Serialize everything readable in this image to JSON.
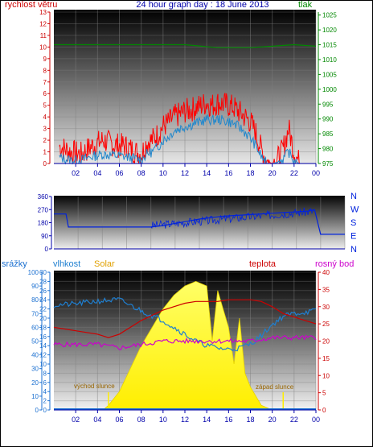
{
  "title": "24 hour graph day : 18 June 2013",
  "colors": {
    "wind": "#ff0000",
    "wind_avg": "#2288cc",
    "pressure": "#008800",
    "direction": "#0022dd",
    "humidity": "#1f7fd0",
    "solar": "#ffff33",
    "temperature": "#cc0000",
    "dewpoint": "#cc00cc",
    "rain": "#1a6fd0",
    "time_axis": "#0000aa"
  },
  "chart_data": [
    {
      "type": "line",
      "labels": {
        "left": "rychlost větru",
        "right": "tlak"
      },
      "x_ticks": [
        "02",
        "04",
        "06",
        "08",
        "10",
        "12",
        "14",
        "16",
        "18",
        "20",
        "22",
        "00"
      ],
      "xlim": [
        0,
        24
      ],
      "y_left": {
        "ticks": [
          "0",
          "1",
          "2",
          "3",
          "4",
          "5",
          "6",
          "7",
          "8",
          "9",
          "10",
          "11",
          "12",
          "13"
        ],
        "ylim": [
          0,
          13
        ]
      },
      "y_right": {
        "ticks": [
          "975",
          "980",
          "985",
          "990",
          "995",
          "1000",
          "1005",
          "1010",
          "1015",
          "1020",
          "1025"
        ],
        "ylim": [
          975,
          1026
        ]
      },
      "series": [
        {
          "key": "wind_gust",
          "axis": "left",
          "x": [
            0.5,
            1.5,
            2.5,
            3.5,
            4.5,
            5.5,
            6.5,
            7.5,
            8,
            8.5,
            9,
            9.5,
            10,
            10.5,
            11,
            11.5,
            12,
            12.5,
            13,
            13.5,
            14,
            14.5,
            15,
            15.5,
            16,
            16.5,
            17,
            17.5,
            18,
            18.5,
            19,
            19.5,
            20,
            20.5,
            21,
            21.5,
            22,
            22.5,
            23,
            24
          ],
          "y": [
            1.5,
            1.0,
            0.8,
            1.5,
            2.0,
            1.6,
            1.5,
            1.0,
            0.8,
            1.8,
            2.0,
            2.5,
            3.2,
            3.5,
            4.0,
            4.2,
            4.5,
            4.6,
            4.8,
            5.0,
            5.2,
            5.0,
            5.2,
            5.1,
            5.0,
            4.8,
            4.4,
            4.0,
            3.6,
            2.6,
            1.2,
            0.2,
            0,
            0.4,
            1.2,
            3.0,
            1.0,
            0,
            0,
            0
          ]
        },
        {
          "key": "wind_avg",
          "axis": "left",
          "x": [
            0.5,
            1.5,
            2.5,
            3.5,
            4.5,
            5.5,
            6.5,
            7.5,
            8,
            8.5,
            9,
            9.5,
            10,
            10.5,
            11,
            11.5,
            12,
            12.5,
            13,
            13.5,
            14,
            14.5,
            15,
            15.5,
            16,
            16.5,
            17,
            17.5,
            18,
            18.5,
            19,
            19.5,
            20,
            20.5,
            21,
            21.5,
            22,
            22.5,
            23,
            24
          ],
          "y": [
            0.5,
            0.3,
            0.3,
            0.6,
            0.8,
            0.7,
            0.6,
            0.4,
            0.3,
            0.8,
            1.0,
            1.4,
            2.0,
            2.3,
            2.8,
            3.0,
            3.2,
            3.3,
            3.5,
            3.6,
            3.8,
            3.7,
            3.8,
            3.7,
            3.6,
            3.4,
            3.1,
            2.7,
            2.2,
            1.5,
            0.6,
            0,
            0,
            0.1,
            0.4,
            1.0,
            0.2,
            0,
            0,
            0
          ]
        },
        {
          "key": "pressure",
          "axis": "right",
          "x": [
            0,
            3,
            6,
            9,
            12,
            15,
            18,
            20,
            22,
            24
          ],
          "y": [
            1015,
            1015,
            1015,
            1015,
            1015,
            1014,
            1014,
            1014.5,
            1015,
            1014.5
          ]
        }
      ]
    },
    {
      "type": "scatter",
      "labels": {
        "right": [
          "N",
          "W",
          "S",
          "E",
          "N"
        ]
      },
      "x_ticks": [
        "02",
        "04",
        "06",
        "08",
        "10",
        "12",
        "14",
        "16",
        "18",
        "20",
        "22",
        "00"
      ],
      "xlim": [
        0,
        24
      ],
      "y_left": {
        "ticks": [
          "0",
          "90",
          "180",
          "270",
          "360"
        ],
        "ylim": [
          0,
          360
        ]
      },
      "series": [
        {
          "key": "wind_direction",
          "x": [
            0,
            1,
            1.2,
            8,
            9,
            10,
            11,
            12,
            13,
            14,
            15,
            16,
            17,
            18,
            19,
            20,
            21,
            21.5,
            22,
            23,
            24
          ],
          "y": [
            240,
            240,
            150,
            150,
            160,
            175,
            190,
            205,
            215,
            225,
            230,
            235,
            240,
            245,
            250,
            255,
            260,
            270,
            100,
            100,
            100
          ]
        }
      ]
    },
    {
      "type": "line",
      "labels": {
        "rain": "srážky",
        "humidity": "vlhkost",
        "solar": "Solar",
        "temperature": "teplota",
        "dewpoint": "rosný bod"
      },
      "annotations": {
        "sunrise": "východ slunce",
        "sunset": "západ slunce",
        "sunrise_x": 5,
        "sunset_x": 21
      },
      "x_ticks": [
        "02",
        "04",
        "06",
        "08",
        "10",
        "12",
        "14",
        "16",
        "18",
        "20",
        "22",
        "00"
      ],
      "xlim": [
        0,
        24
      ],
      "y_rain": {
        "ticks": [
          "0",
          "10",
          "20",
          "30",
          "40",
          "50",
          "60",
          "70",
          "80",
          "90",
          "100"
        ],
        "ylim": [
          0,
          100
        ]
      },
      "y_humidity": {
        "ticks": [
          "0",
          "2",
          "4",
          "6",
          "8",
          "10",
          "12",
          "14",
          "16",
          "18",
          "20",
          "22",
          "24",
          "26",
          "28",
          "30"
        ],
        "ylim": [
          0,
          30
        ]
      },
      "y_temperature": {
        "ticks": [
          "0",
          "5",
          "10",
          "15",
          "20",
          "25",
          "30",
          "35",
          "40"
        ],
        "ylim": [
          0,
          40
        ]
      },
      "series": [
        {
          "key": "humidity",
          "axis": "rain",
          "x": [
            0,
            2,
            4,
            6,
            8,
            10,
            12,
            13,
            14,
            15,
            16,
            17,
            18,
            19,
            20,
            21,
            22,
            23,
            24
          ],
          "y": [
            76,
            77,
            79,
            80,
            72,
            65,
            55,
            50,
            47,
            45,
            44,
            45,
            48,
            54,
            62,
            68,
            70,
            71,
            72
          ]
        },
        {
          "key": "temperature",
          "axis": "temperature",
          "x": [
            0,
            2,
            4,
            5,
            6,
            8,
            10,
            12,
            13,
            14,
            15,
            16,
            17,
            18,
            19,
            20,
            21,
            22,
            23,
            24
          ],
          "y": [
            24,
            23,
            22,
            21,
            22,
            26,
            29,
            31,
            31.5,
            31.5,
            31.5,
            32,
            32,
            32,
            31.5,
            30,
            28,
            27,
            26,
            25
          ]
        },
        {
          "key": "dewpoint",
          "axis": "temperature",
          "x": [
            0,
            2,
            4,
            6,
            8,
            10,
            12,
            14,
            16,
            18,
            20,
            22,
            24
          ],
          "y": [
            19,
            19,
            19,
            18,
            19,
            20,
            20,
            20,
            20,
            20,
            21,
            21,
            21
          ]
        },
        {
          "key": "solar",
          "axis": "humidity",
          "x": [
            4.5,
            5,
            6,
            7,
            8,
            9,
            10,
            11,
            12,
            13,
            14,
            14.5,
            15,
            15.5,
            16,
            16.5,
            17,
            17.5,
            18,
            18.5,
            19,
            19.5,
            20,
            24
          ],
          "y": [
            0,
            1,
            4,
            9,
            14,
            18,
            22,
            25,
            27,
            28,
            27,
            15,
            26,
            22,
            18,
            10,
            20,
            8,
            5,
            3,
            1,
            0.5,
            0,
            0
          ]
        }
      ]
    }
  ]
}
